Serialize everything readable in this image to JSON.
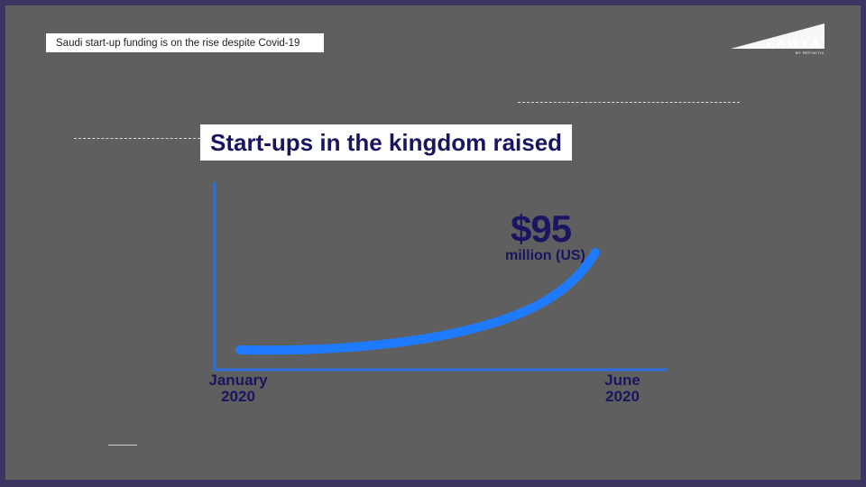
{
  "caption": "Saudi start-up funding is on the rise despite Covid-19",
  "logo": {
    "name": "ZAWYA",
    "sub": "BY REFINITIV"
  },
  "colors": {
    "background": "#5f5f5f",
    "border": "#3a3560",
    "navy_text": "#1a1560",
    "curve": "#1e7bff",
    "axis": "#2a6fe0"
  },
  "chart_data": {
    "type": "line",
    "title": "Start-ups in the kingdom raised",
    "x_tick_labels": [
      {
        "line1": "January",
        "line2": "2020"
      },
      {
        "line1": "June",
        "line2": "2020"
      }
    ],
    "series": [
      {
        "x": [
          "January 2020",
          "June 2020"
        ],
        "values": [
          null,
          95
        ]
      }
    ],
    "annotation": {
      "value": "$95",
      "unit": "million (US)"
    },
    "grid": false
  }
}
